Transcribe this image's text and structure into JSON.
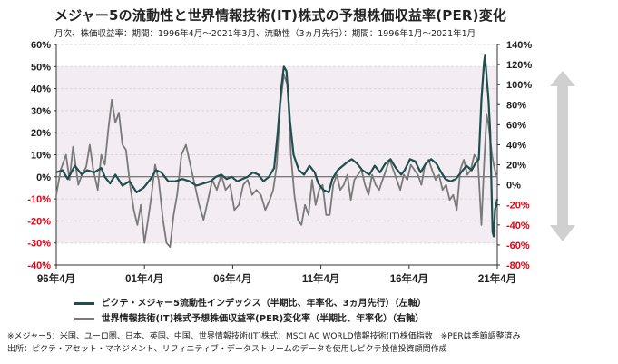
{
  "title": "メジャー5の流動性と世界情報技術(IT)株式の予想株価収益率(PER)変化",
  "subtitle": "月次、株価収益率：期間：1996年4月～2021年3月、流動性（3ヵ月先行）：期間：1996年1月～2021年1月",
  "notes": [
    "※メジャー5：米国、ユーロ圏、日本、英国、中国、世界情報技術(IT)株式：MSCI AC WORLD情報技術(IT)株価指数　※PERは季節調整済み",
    "出所：ピクテ・アセット・マネジメント、リフィニティブ・データストリームのデータを使用しピクテ投信投資顧問作成"
  ],
  "chart_data": {
    "type": "line",
    "x_tick_labels": [
      "96年4月",
      "01年4月",
      "06年4月",
      "11年4月",
      "16年4月",
      "21年4月"
    ],
    "x_tick_years": [
      1996.25,
      2001.25,
      2006.25,
      2011.25,
      2016.25,
      2021.25
    ],
    "xlim": [
      1996.25,
      2021.25
    ],
    "y_left": {
      "ylim": [
        -40,
        60
      ],
      "ticks": [
        60,
        50,
        40,
        30,
        20,
        10,
        0,
        -10,
        -20,
        -30,
        -40
      ],
      "tick_labels": [
        "60%",
        "50%",
        "40%",
        "30%",
        "20%",
        "10%",
        "0%",
        "-10%",
        "-20%",
        "-30%",
        "-40%"
      ]
    },
    "y_right": {
      "ylim": [
        -80,
        140
      ],
      "ticks": [
        140,
        120,
        100,
        80,
        60,
        40,
        20,
        0,
        -20,
        -40,
        -60,
        -80
      ],
      "tick_labels": [
        "140%",
        "120%",
        "100%",
        "80%",
        "60%",
        "40%",
        "20%",
        "0%",
        "-20%",
        "-40%",
        "-60%",
        "-80%"
      ]
    },
    "shaded_band": [
      -30,
      50
    ],
    "grid": true,
    "series": [
      {
        "name": "ピクテ・メジャー5流動性インデックス（半期比、年率化、3ヵ月先行）（左軸）",
        "axis": "left",
        "color": "#1f4e4d",
        "points": [
          [
            1996.25,
            2
          ],
          [
            1996.6,
            3
          ],
          [
            1996.9,
            -1
          ],
          [
            1997.3,
            5
          ],
          [
            1997.7,
            1
          ],
          [
            1998.0,
            3
          ],
          [
            1998.4,
            2
          ],
          [
            1998.8,
            4
          ],
          [
            1999.0,
            0
          ],
          [
            1999.3,
            -3
          ],
          [
            1999.6,
            1
          ],
          [
            2000.0,
            -4
          ],
          [
            2000.4,
            -2
          ],
          [
            2000.8,
            -7
          ],
          [
            2001.2,
            -5
          ],
          [
            2001.6,
            -1
          ],
          [
            2001.9,
            3
          ],
          [
            2002.2,
            2
          ],
          [
            2002.6,
            -2
          ],
          [
            2003.0,
            -2
          ],
          [
            2003.4,
            -1
          ],
          [
            2003.8,
            -2
          ],
          [
            2004.2,
            -4
          ],
          [
            2004.6,
            -3
          ],
          [
            2005.0,
            -2
          ],
          [
            2005.3,
            0
          ],
          [
            2005.6,
            1
          ],
          [
            2005.9,
            -1
          ],
          [
            2006.2,
            0
          ],
          [
            2006.5,
            -2
          ],
          [
            2006.8,
            -1
          ],
          [
            2007.1,
            0
          ],
          [
            2007.4,
            2
          ],
          [
            2007.7,
            1
          ],
          [
            2008.0,
            -2
          ],
          [
            2008.3,
            0
          ],
          [
            2008.6,
            4
          ],
          [
            2008.8,
            20
          ],
          [
            2009.0,
            40
          ],
          [
            2009.15,
            50
          ],
          [
            2009.3,
            48
          ],
          [
            2009.5,
            25
          ],
          [
            2009.7,
            10
          ],
          [
            2010.0,
            3
          ],
          [
            2010.3,
            1
          ],
          [
            2010.6,
            5
          ],
          [
            2010.9,
            2
          ],
          [
            2011.1,
            -3
          ],
          [
            2011.4,
            -6
          ],
          [
            2011.7,
            -7
          ],
          [
            2011.9,
            -1
          ],
          [
            2012.2,
            3
          ],
          [
            2012.5,
            5
          ],
          [
            2012.8,
            7
          ],
          [
            2013.0,
            8
          ],
          [
            2013.3,
            6
          ],
          [
            2013.6,
            3
          ],
          [
            2014.0,
            1
          ],
          [
            2014.3,
            5
          ],
          [
            2014.6,
            2
          ],
          [
            2014.9,
            6
          ],
          [
            2015.2,
            8
          ],
          [
            2015.5,
            4
          ],
          [
            2015.8,
            1
          ],
          [
            2016.0,
            3
          ],
          [
            2016.3,
            8
          ],
          [
            2016.6,
            7
          ],
          [
            2016.9,
            2
          ],
          [
            2017.2,
            6
          ],
          [
            2017.5,
            8
          ],
          [
            2017.8,
            6
          ],
          [
            2018.0,
            3
          ],
          [
            2018.3,
            -1
          ],
          [
            2018.6,
            -2
          ],
          [
            2018.9,
            -1
          ],
          [
            2019.2,
            2
          ],
          [
            2019.5,
            5
          ],
          [
            2019.8,
            3
          ],
          [
            2020.0,
            6
          ],
          [
            2020.2,
            8
          ],
          [
            2020.35,
            35
          ],
          [
            2020.5,
            52
          ],
          [
            2020.55,
            55
          ],
          [
            2020.65,
            45
          ],
          [
            2020.75,
            35
          ],
          [
            2020.85,
            20
          ],
          [
            2020.92,
            -5
          ],
          [
            2020.98,
            -25
          ],
          [
            2021.05,
            -27
          ],
          [
            2021.12,
            -15
          ],
          [
            2021.25,
            -10
          ]
        ]
      },
      {
        "name": "世界情報技術(IT)株式予想株価収益率(PER)変化率（半期比、年率化）（右軸）",
        "axis": "right",
        "color": "#7a7a7a",
        "points": [
          [
            1996.25,
            -10
          ],
          [
            1996.5,
            15
          ],
          [
            1996.8,
            30
          ],
          [
            1997.0,
            5
          ],
          [
            1997.2,
            38
          ],
          [
            1997.5,
            0
          ],
          [
            1997.7,
            10
          ],
          [
            1997.95,
            18
          ],
          [
            1998.15,
            40
          ],
          [
            1998.35,
            15
          ],
          [
            1998.6,
            -5
          ],
          [
            1998.8,
            30
          ],
          [
            1999.0,
            20
          ],
          [
            1999.2,
            55
          ],
          [
            1999.4,
            85
          ],
          [
            1999.6,
            62
          ],
          [
            1999.8,
            72
          ],
          [
            2000.0,
            40
          ],
          [
            2000.2,
            35
          ],
          [
            2000.45,
            -2
          ],
          [
            2000.65,
            -25
          ],
          [
            2000.85,
            -40
          ],
          [
            2001.05,
            -20
          ],
          [
            2001.25,
            -58
          ],
          [
            2001.45,
            -35
          ],
          [
            2001.65,
            -10
          ],
          [
            2001.85,
            20
          ],
          [
            2002.05,
            5
          ],
          [
            2002.3,
            -35
          ],
          [
            2002.5,
            -58
          ],
          [
            2002.7,
            -62
          ],
          [
            2002.9,
            -30
          ],
          [
            2003.1,
            -10
          ],
          [
            2003.35,
            30
          ],
          [
            2003.6,
            40
          ],
          [
            2003.85,
            20
          ],
          [
            2004.1,
            0
          ],
          [
            2004.35,
            -20
          ],
          [
            2004.6,
            -35
          ],
          [
            2004.85,
            -15
          ],
          [
            2005.1,
            5
          ],
          [
            2005.35,
            -5
          ],
          [
            2005.6,
            10
          ],
          [
            2005.85,
            -5
          ],
          [
            2006.1,
            0
          ],
          [
            2006.35,
            -25
          ],
          [
            2006.6,
            -20
          ],
          [
            2006.85,
            0
          ],
          [
            2007.1,
            5
          ],
          [
            2007.35,
            -10
          ],
          [
            2007.6,
            -5
          ],
          [
            2007.85,
            -10
          ],
          [
            2008.1,
            -25
          ],
          [
            2008.35,
            -15
          ],
          [
            2008.55,
            -5
          ],
          [
            2008.75,
            20
          ],
          [
            2008.95,
            80
          ],
          [
            2009.15,
            110
          ],
          [
            2009.35,
            100
          ],
          [
            2009.55,
            30
          ],
          [
            2009.75,
            -10
          ],
          [
            2009.95,
            -35
          ],
          [
            2010.15,
            -40
          ],
          [
            2010.35,
            -20
          ],
          [
            2010.55,
            -30
          ],
          [
            2010.75,
            5
          ],
          [
            2010.95,
            -20
          ],
          [
            2011.15,
            -5
          ],
          [
            2011.35,
            0
          ],
          [
            2011.55,
            -30
          ],
          [
            2011.75,
            -30
          ],
          [
            2011.95,
            0
          ],
          [
            2012.15,
            10
          ],
          [
            2012.35,
            -5
          ],
          [
            2012.55,
            0
          ],
          [
            2012.75,
            10
          ],
          [
            2012.95,
            -15
          ],
          [
            2013.15,
            5
          ],
          [
            2013.35,
            10
          ],
          [
            2013.55,
            15
          ],
          [
            2013.75,
            0
          ],
          [
            2013.95,
            -10
          ],
          [
            2014.15,
            10
          ],
          [
            2014.35,
            0
          ],
          [
            2014.55,
            -5
          ],
          [
            2014.75,
            5
          ],
          [
            2014.95,
            15
          ],
          [
            2015.15,
            25
          ],
          [
            2015.35,
            15
          ],
          [
            2015.55,
            5
          ],
          [
            2015.75,
            -5
          ],
          [
            2015.95,
            10
          ],
          [
            2016.15,
            5
          ],
          [
            2016.35,
            20
          ],
          [
            2016.55,
            15
          ],
          [
            2016.75,
            10
          ],
          [
            2016.95,
            0
          ],
          [
            2017.15,
            20
          ],
          [
            2017.35,
            25
          ],
          [
            2017.55,
            15
          ],
          [
            2017.75,
            5
          ],
          [
            2017.95,
            10
          ],
          [
            2018.15,
            -5
          ],
          [
            2018.35,
            0
          ],
          [
            2018.55,
            -15
          ],
          [
            2018.75,
            -10
          ],
          [
            2018.95,
            -25
          ],
          [
            2019.15,
            15
          ],
          [
            2019.35,
            25
          ],
          [
            2019.55,
            10
          ],
          [
            2019.75,
            15
          ],
          [
            2019.95,
            30
          ],
          [
            2020.15,
            25
          ],
          [
            2020.35,
            -40
          ],
          [
            2020.5,
            20
          ],
          [
            2020.65,
            70
          ],
          [
            2020.75,
            60
          ],
          [
            2020.85,
            45
          ],
          [
            2020.95,
            30
          ],
          [
            2021.05,
            20
          ],
          [
            2021.15,
            12
          ],
          [
            2021.25,
            8
          ]
        ]
      }
    ]
  }
}
